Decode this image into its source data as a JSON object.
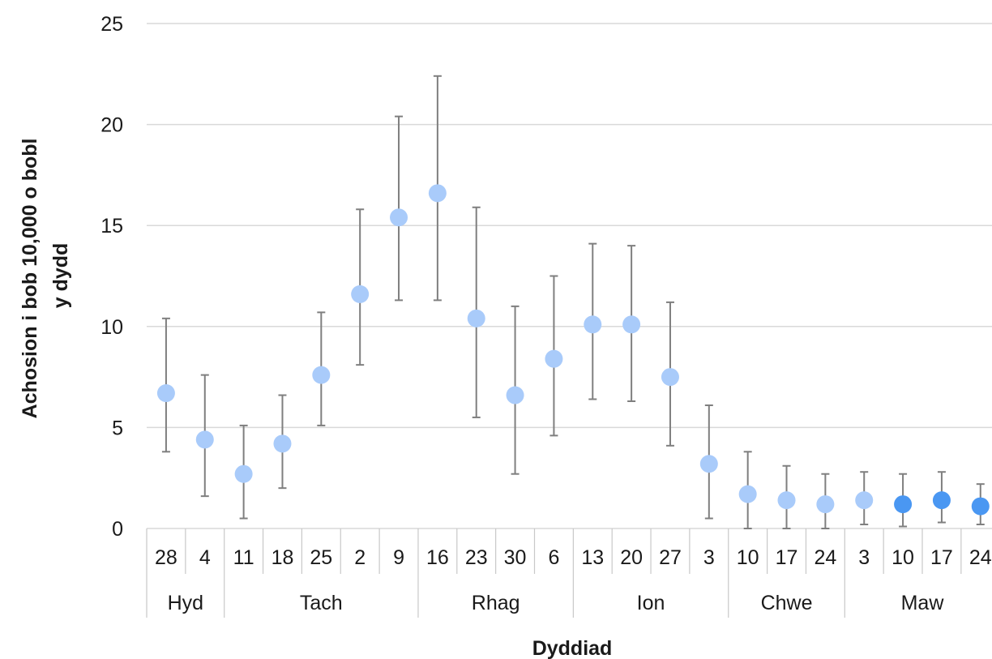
{
  "chart_data": {
    "type": "scatter",
    "title": "",
    "ylabel_lines": [
      "Achosion i bob 10,000 o bobl",
      "y dydd"
    ],
    "xlabel": "Dyddiad",
    "ylim": [
      0,
      25
    ],
    "yticks": [
      0,
      5,
      10,
      15,
      20,
      25
    ],
    "grid": true,
    "legend": "none",
    "colors": {
      "light_point": "#a9cbfa",
      "dark_point": "#4a97f2",
      "error_bar": "#7f7f7f",
      "gridline": "#d9d9d9"
    },
    "day_labels": [
      "28",
      "4",
      "11",
      "18",
      "25",
      "2",
      "9",
      "16",
      "23",
      "30",
      "6",
      "13",
      "20",
      "27",
      "3",
      "10",
      "17",
      "24",
      "3",
      "10",
      "17",
      "24"
    ],
    "month_groups": [
      {
        "label": "Hyd",
        "count": 2
      },
      {
        "label": "Tach",
        "count": 5
      },
      {
        "label": "Rhag",
        "count": 4
      },
      {
        "label": "Ion",
        "count": 4
      },
      {
        "label": "Chwe",
        "count": 3
      },
      {
        "label": "Maw",
        "count": 4
      }
    ],
    "values": [
      6.7,
      4.4,
      2.7,
      4.2,
      7.6,
      11.6,
      15.4,
      16.6,
      10.4,
      6.6,
      8.4,
      10.1,
      10.1,
      7.5,
      3.2,
      1.7,
      1.4,
      1.2,
      1.4,
      1.2,
      1.4,
      1.1
    ],
    "error_low": [
      3.8,
      1.6,
      0.5,
      2.0,
      5.1,
      8.1,
      11.3,
      11.3,
      5.5,
      2.7,
      4.6,
      6.4,
      6.3,
      4.1,
      0.5,
      0.0,
      0.0,
      0.0,
      0.2,
      0.1,
      0.3,
      0.2
    ],
    "error_high": [
      10.4,
      7.6,
      5.1,
      6.6,
      10.7,
      15.8,
      20.4,
      22.4,
      15.9,
      11.0,
      12.5,
      14.1,
      14.0,
      11.2,
      6.1,
      3.8,
      3.1,
      2.7,
      2.8,
      2.7,
      2.8,
      2.2
    ],
    "highlighted": [
      false,
      false,
      false,
      false,
      false,
      false,
      false,
      false,
      false,
      false,
      false,
      false,
      false,
      false,
      false,
      false,
      false,
      false,
      false,
      true,
      true,
      true
    ]
  }
}
